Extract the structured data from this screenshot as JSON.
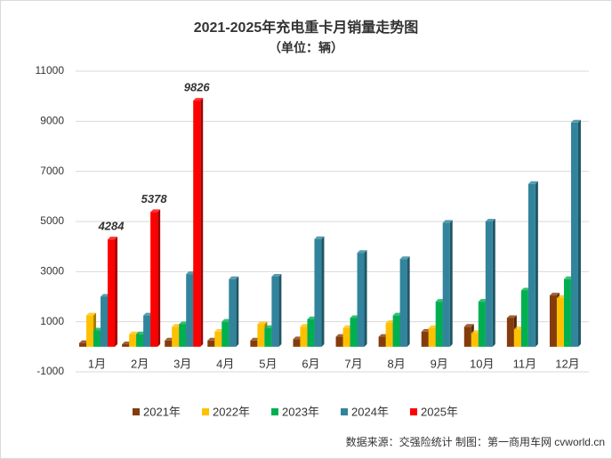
{
  "chart_data": {
    "type": "bar",
    "title": "2021-2025年充电重卡月销量走势图",
    "subtitle": "（单位：辆）",
    "source": "数据来源：交强险统计  制图：第一商用车网 cvworld.cn",
    "categories": [
      "1月",
      "2月",
      "3月",
      "4月",
      "5月",
      "6月",
      "7月",
      "8月",
      "9月",
      "10月",
      "11月",
      "12月"
    ],
    "series": [
      {
        "name": "2021年",
        "color": "#843c0c",
        "values": [
          150,
          100,
          250,
          250,
          250,
          300,
          400,
          400,
          600,
          800,
          1150,
          2050
        ]
      },
      {
        "name": "2022年",
        "color": "#ffc000",
        "values": [
          1250,
          500,
          800,
          600,
          900,
          800,
          750,
          950,
          750,
          550,
          700,
          1950
        ]
      },
      {
        "name": "2023年",
        "color": "#00b050",
        "values": [
          650,
          500,
          900,
          1000,
          750,
          1100,
          1150,
          1250,
          1800,
          1800,
          2250,
          2700
        ]
      },
      {
        "name": "2024年",
        "color": "#31849b",
        "values": [
          2000,
          1250,
          2900,
          2700,
          2800,
          4300,
          3750,
          3500,
          4950,
          5000,
          6500,
          8950
        ]
      },
      {
        "name": "2025年",
        "color": "#ff0000",
        "values": [
          4284,
          5378,
          9826,
          null,
          null,
          null,
          null,
          null,
          null,
          null,
          null,
          null
        ],
        "data_labels": true
      }
    ],
    "ylim": [
      -1000,
      11000
    ],
    "yticks": [
      -1000,
      1000,
      3000,
      5000,
      7000,
      9000,
      11000
    ],
    "grid": true,
    "legend": "bottom"
  }
}
